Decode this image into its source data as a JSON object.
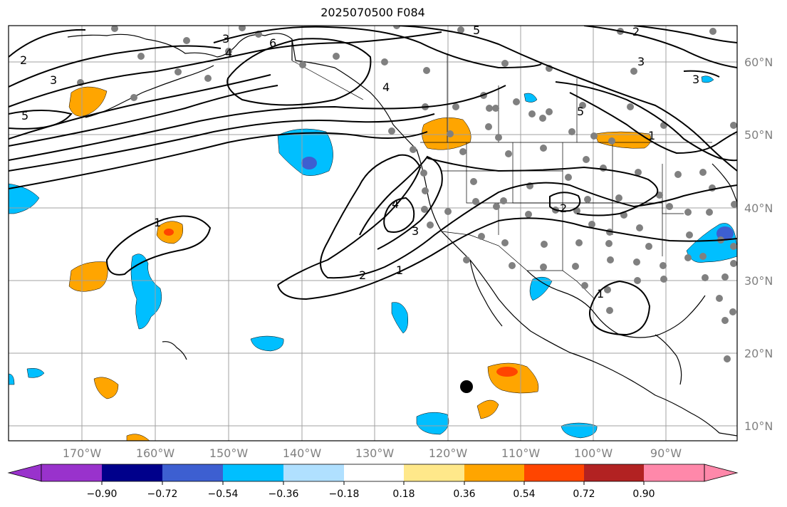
{
  "title": "2025070500 F084",
  "map": {
    "lat_labels": [
      "60°N",
      "50°N",
      "40°N",
      "30°N",
      "20°N",
      "10°N"
    ],
    "lon_labels": [
      "170°W",
      "160°W",
      "150°W",
      "140°W",
      "130°W",
      "120°W",
      "110°W",
      "100°W",
      "90°W"
    ],
    "contour_labels": [
      "2",
      "3",
      "3",
      "4",
      "5",
      "6",
      "5",
      "4",
      "3",
      "2",
      "1",
      "1",
      "2",
      "3",
      "4",
      "2",
      "1",
      "1",
      "5",
      "3"
    ],
    "colors": {
      "ocean": "#ffffff",
      "grid": "#a0a0a0",
      "contour": "#000000",
      "station": "#808080"
    }
  },
  "colorbar": {
    "ticks": [
      "−0.90",
      "−0.72",
      "−0.54",
      "−0.36",
      "−0.18",
      "0.18",
      "0.36",
      "0.54",
      "0.72",
      "0.90"
    ],
    "colors": [
      "#9932cc",
      "#00008b",
      "#3d5fd1",
      "#00bfff",
      "#b0e0ff",
      "#ffffff",
      "#ffe88a",
      "#ffa500",
      "#ff4500",
      "#b22222",
      "#ff88aa"
    ]
  }
}
